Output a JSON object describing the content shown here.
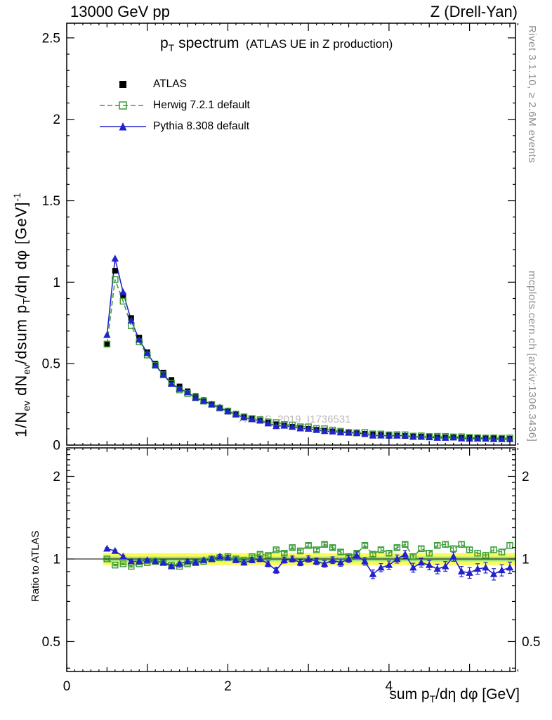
{
  "header": {
    "left": "13000 GeV pp",
    "right": "Z (Drell-Yan)"
  },
  "title": {
    "main_pre": "p",
    "main_sub": "T",
    "main_post": " spectrum",
    "paren": "(ATLAS UE in Z production)"
  },
  "watermark": "ATLAS_2019_I1736531",
  "side_notes": {
    "top": "Rivet 3.1.10, ≥ 2.6M events",
    "bottom": "mcplots.cern.ch [arXiv:1306.3436]"
  },
  "axes": {
    "y_main": {
      "p1": "1/N",
      "s1": "ev",
      "p2": " dN",
      "s2": "ev",
      "p3": "/dsum p",
      "s3": "T",
      "p4": "/dη dφ  [GeV]",
      "sup": "-1"
    },
    "y_ratio_label": "Ratio to ATLAS",
    "x_label": {
      "p1": "sum p",
      "s1": "T",
      "p2": "/dη dφ [GeV]"
    }
  },
  "chart_data": {
    "type": "line",
    "title": "p_T spectrum (ATLAS UE in Z production)",
    "xlabel": "sum p_T/dη dφ [GeV]",
    "ylabel": "1/N_ev dN_ev/dsum p_T/dη dφ [GeV]^-1",
    "ylabel_ratio": "Ratio to ATLAS",
    "grid": false,
    "legend_position": "top-left",
    "x_start": 0.5,
    "x_step": 0.1,
    "xlim": [
      0,
      5.57
    ],
    "xticks": [
      [
        0,
        "0"
      ],
      [
        2,
        "2"
      ],
      [
        4,
        "4"
      ]
    ],
    "main": {
      "scale": "linear",
      "ylim": [
        0,
        2.59
      ],
      "yticks": [
        [
          0,
          "0"
        ],
        [
          0.5,
          "0.5"
        ],
        [
          1,
          "1"
        ],
        [
          1.5,
          "1.5"
        ],
        [
          2,
          "2"
        ],
        [
          2.5,
          "2.5"
        ]
      ]
    },
    "ratio": {
      "scale": "log",
      "ylim": [
        0.389,
        2.54
      ],
      "yticks": [
        [
          0.5,
          "0.5"
        ],
        [
          1,
          "1"
        ],
        [
          2,
          "2"
        ]
      ]
    },
    "band": {
      "x_from": 0.45,
      "outer": [
        0.95,
        1.05
      ],
      "inner": [
        0.98,
        1.02
      ],
      "outer_color": "#fbfb57",
      "inner_color": "#9fe37f"
    },
    "series": [
      {
        "name": "ATLAS",
        "color": "#000000",
        "marker": "square-filled",
        "line": "none",
        "rel_err": 0.015,
        "values": [
          0.62,
          1.07,
          0.92,
          0.78,
          0.66,
          0.57,
          0.5,
          0.445,
          0.4,
          0.36,
          0.33,
          0.3,
          0.275,
          0.25,
          0.225,
          0.205,
          0.19,
          0.175,
          0.16,
          0.15,
          0.138,
          0.128,
          0.12,
          0.112,
          0.105,
          0.1,
          0.094,
          0.089,
          0.084,
          0.08,
          0.076,
          0.072,
          0.069,
          0.066,
          0.063,
          0.06,
          0.058,
          0.056,
          0.054,
          0.052,
          0.05,
          0.048,
          0.047,
          0.046,
          0.045,
          0.044,
          0.043,
          0.042,
          0.041,
          0.04,
          0.039
        ]
      },
      {
        "name": "Herwig 7.2.1 default",
        "color": "#3c9d38",
        "marker": "square-open",
        "line": "dashed",
        "ratio": [
          1.0,
          0.95,
          0.96,
          0.94,
          0.96,
          0.97,
          0.98,
          0.97,
          0.95,
          0.94,
          0.96,
          0.97,
          0.98,
          1.0,
          1.01,
          1.02,
          1.0,
          0.99,
          1.02,
          1.04,
          1.03,
          1.08,
          1.05,
          1.1,
          1.07,
          1.12,
          1.08,
          1.13,
          1.1,
          1.06,
          1.02,
          1.05,
          1.12,
          1.04,
          1.08,
          1.05,
          1.1,
          1.13,
          1.02,
          1.09,
          1.05,
          1.12,
          1.13,
          1.09,
          1.13,
          1.08,
          1.05,
          1.03,
          1.08,
          1.06,
          1.12
        ],
        "ratio_err": [
          0.006,
          0.006,
          0.007,
          0.007,
          0.008,
          0.008,
          0.008,
          0.009,
          0.009,
          0.01,
          0.01,
          0.01,
          0.011,
          0.011,
          0.012,
          0.012,
          0.012,
          0.013,
          0.013,
          0.014,
          0.014,
          0.014,
          0.015,
          0.015,
          0.016,
          0.016,
          0.016,
          0.017,
          0.017,
          0.018,
          0.018,
          0.018,
          0.019,
          0.019,
          0.02,
          0.02,
          0.02,
          0.021,
          0.021,
          0.022,
          0.022,
          0.022,
          0.023,
          0.023,
          0.024,
          0.024,
          0.024,
          0.025,
          0.025,
          0.026,
          0.026
        ]
      },
      {
        "name": "Pythia 8.308 default",
        "color": "#2222cc",
        "marker": "triangle-filled",
        "line": "solid",
        "ratio": [
          1.09,
          1.07,
          1.02,
          0.98,
          0.98,
          0.99,
          0.98,
          0.97,
          0.94,
          0.96,
          0.98,
          0.97,
          0.99,
          1.0,
          1.02,
          1.01,
          0.99,
          0.97,
          0.99,
          1.0,
          0.96,
          0.91,
          0.99,
          1.0,
          0.97,
          1.0,
          0.98,
          0.96,
          0.99,
          0.97,
          1.0,
          1.03,
          0.98,
          0.88,
          0.93,
          0.95,
          1.0,
          1.04,
          0.93,
          0.97,
          0.95,
          0.92,
          0.94,
          1.02,
          0.9,
          0.89,
          0.92,
          0.93,
          0.88,
          0.91,
          0.93
        ],
        "ratio_err": [
          0.009,
          0.009,
          0.01,
          0.011,
          0.011,
          0.012,
          0.013,
          0.013,
          0.014,
          0.015,
          0.016,
          0.016,
          0.017,
          0.018,
          0.018,
          0.019,
          0.02,
          0.02,
          0.021,
          0.022,
          0.023,
          0.023,
          0.024,
          0.025,
          0.025,
          0.026,
          0.027,
          0.027,
          0.028,
          0.029,
          0.03,
          0.03,
          0.031,
          0.032,
          0.032,
          0.033,
          0.034,
          0.034,
          0.035,
          0.036,
          0.037,
          0.037,
          0.038,
          0.039,
          0.039,
          0.04,
          0.041,
          0.041,
          0.042,
          0.043,
          0.044
        ]
      }
    ]
  }
}
